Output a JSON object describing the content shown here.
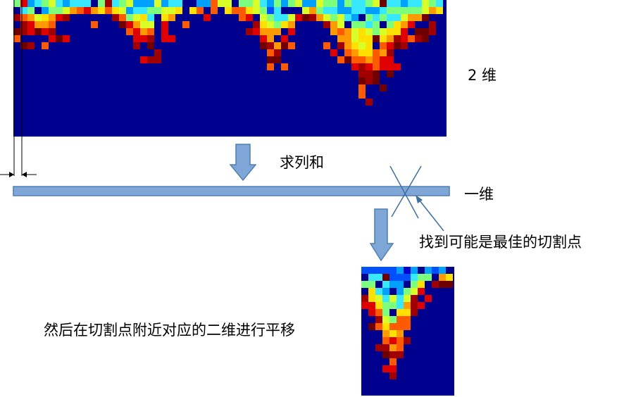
{
  "labels": {
    "two_dim": "2 维",
    "sum_columns": "求列和",
    "one_dim": "一维",
    "find_cut_point": "找到可能是最佳的切割点",
    "shift_note": "然后在切割点附近对应的二维进行平移"
  },
  "colors": {
    "background_navy": "#00008f",
    "bar_fill": "#7ea7d8",
    "bar_stroke": "#4f7fb4",
    "arrow_fill": "#7ea7d8",
    "arrow_stroke": "#4f7fb4",
    "cross_line": "#3f6f9f"
  },
  "heatmap_palette": [
    "#00008f",
    "#0000d0",
    "#0050ff",
    "#00a0ff",
    "#38e8ff",
    "#7cff7c",
    "#d8ff28",
    "#ffe000",
    "#ff9a00",
    "#ff5a00",
    "#e00000",
    "#a00000",
    "#700000"
  ],
  "icons": [
    "down-arrow-icon",
    "cross-mark-icon",
    "pointer-arrow-icon",
    "dimension-arrow-icon"
  ]
}
